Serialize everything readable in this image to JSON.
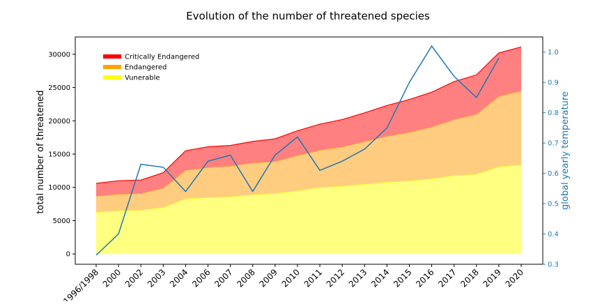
{
  "chart_data": {
    "type": "area",
    "title": "Evolution of the number of threatened species",
    "ylabel": "total number of threatened",
    "y2label": "global yearly temperature",
    "categories": [
      "1996/1998",
      "2000",
      "2002",
      "2003",
      "2004",
      "2006",
      "2007",
      "2008",
      "2009",
      "2010",
      "2011",
      "2012",
      "2013",
      "2014",
      "2015",
      "2016",
      "2017",
      "2018",
      "2019",
      "2020"
    ],
    "ylim": [
      -1550,
      32600
    ],
    "yticks": [
      0,
      5000,
      10000,
      15000,
      20000,
      25000,
      30000
    ],
    "ytick_labels": [
      "0",
      "5000",
      "10000",
      "15000",
      "20000",
      "25000",
      "30000"
    ],
    "y2lim": [
      0.3,
      1.05
    ],
    "y2ticks": [
      0.3,
      0.4,
      0.5,
      0.6,
      0.7,
      0.8,
      0.9,
      1.0
    ],
    "y2tick_labels": [
      "0.3",
      "0.4",
      "0.5",
      "0.6",
      "0.7",
      "0.8",
      "0.9",
      "1.0"
    ],
    "stacked": true,
    "series": [
      {
        "name": "Vunerable",
        "fill": "#ffff80",
        "edge": "#ffff00",
        "values": [
          6300,
          6500,
          6600,
          7000,
          8300,
          8500,
          8600,
          8900,
          9100,
          9500,
          10000,
          10200,
          10500,
          10800,
          11000,
          11300,
          11800,
          12000,
          13100,
          13400
        ]
      },
      {
        "name": "Endangered",
        "fill": "#ffcc80",
        "edge": "#ffa500",
        "values": [
          2400,
          2500,
          2500,
          2900,
          4300,
          4500,
          4600,
          4800,
          4800,
          5300,
          5600,
          5900,
          6400,
          6900,
          7300,
          7800,
          8400,
          9000,
          10600,
          11100
        ]
      },
      {
        "name": "Critically Endangered",
        "fill": "#ff8080",
        "edge": "#ff0000",
        "values": [
          1900,
          2000,
          2000,
          2300,
          2900,
          3100,
          3100,
          3200,
          3400,
          3700,
          3900,
          4100,
          4300,
          4600,
          4900,
          5200,
          5700,
          5900,
          6500,
          6600
        ]
      }
    ],
    "legend": {
      "placement": "upper-left",
      "entries": [
        {
          "label": "Critically Endangered",
          "color": "#ff0000"
        },
        {
          "label": "Endangered",
          "color": "#ffa500"
        },
        {
          "label": "Vunerable",
          "color": "#ffff00"
        }
      ]
    },
    "line_series": {
      "axis": "right",
      "color": "#1f77b4",
      "values": [
        0.33,
        0.4,
        0.63,
        0.62,
        0.54,
        0.64,
        0.66,
        0.54,
        0.66,
        0.72,
        0.61,
        0.64,
        0.68,
        0.75,
        0.9,
        1.02,
        0.92,
        0.85,
        0.98
      ]
    }
  }
}
